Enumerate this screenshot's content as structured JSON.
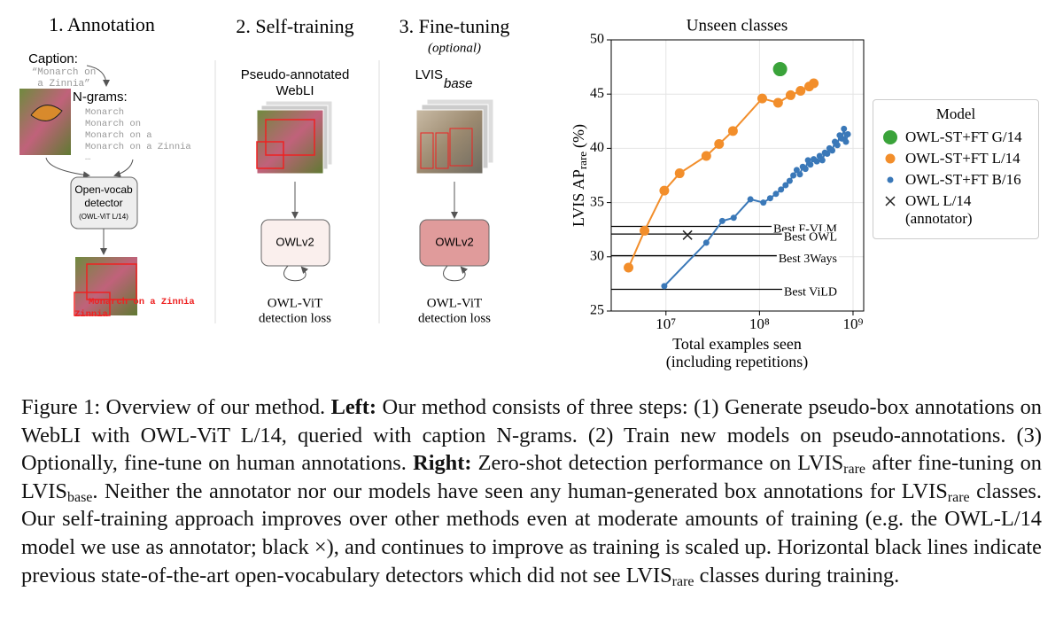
{
  "diagram": {
    "steps": [
      {
        "title": "1. Annotation"
      },
      {
        "title": "2. Self-training",
        "input": [
          "Pseudo-annotated",
          "WebLI"
        ],
        "model": "OWLv2",
        "loss": [
          "OWL-ViT",
          "detection loss"
        ]
      },
      {
        "title": "3. Fine-tuning",
        "note": "(optional)",
        "input": "LVIS",
        "input_sub": "base",
        "model": "OWLv2",
        "loss": [
          "OWL-ViT",
          "detection loss"
        ]
      }
    ],
    "caption_label": "Caption:",
    "caption_text": [
      "“Monarch on",
      "a Zinnia”"
    ],
    "ngrams_label": "N-grams:",
    "ngrams": [
      "Monarch",
      "Monarch on",
      "Monarch on a",
      "Monarch on a Zinnia",
      "…"
    ],
    "detector": [
      "Open-vocab",
      "detector",
      "(OWL-ViT L/14)"
    ],
    "box_labels": [
      "Monarch on a Zinnia",
      "Zinnia"
    ]
  },
  "chart_data": {
    "type": "scatter",
    "title": "Unseen classes",
    "ylabel": {
      "text": "LVIS AP",
      "sub": "rare",
      "unit": "(%)"
    },
    "xlabel": [
      "Total examples seen",
      "(including repetitions)"
    ],
    "xscale": "log",
    "xlim": [
      2600000,
      1300000000
    ],
    "xticks": [
      {
        "value": 10000000,
        "label": "10⁷"
      },
      {
        "value": 100000000,
        "label": "10⁸"
      },
      {
        "value": 1000000000,
        "label": "10⁹"
      }
    ],
    "ylim": [
      25,
      50
    ],
    "yticks": [
      25,
      30,
      35,
      40,
      45,
      50
    ],
    "grid": true,
    "legend": {
      "title": "Model",
      "loc": "right"
    },
    "series": [
      {
        "name": "OWL-ST+FT G/14",
        "color": "#3aa33a",
        "marker": "circle",
        "size": 8,
        "line": false,
        "x": [
          166000000
        ],
        "values": [
          47.3
        ]
      },
      {
        "name": "OWL-ST+FT L/14",
        "color": "#f28e2b",
        "marker": "circle",
        "size": 5.5,
        "line": true,
        "x": [
          3980000,
          5900000,
          9600000,
          14000000,
          27000000,
          37000000,
          52000000,
          107000000,
          158000000,
          215000000,
          275000000,
          340000000,
          380000000
        ],
        "values": [
          29.0,
          32.4,
          36.1,
          37.7,
          39.3,
          40.4,
          41.6,
          44.6,
          44.2,
          44.9,
          45.3,
          45.7,
          46.0
        ]
      },
      {
        "name": "OWL-ST+FT B/16",
        "color": "#3a78b8",
        "marker": "circle",
        "size": 3.5,
        "line": true,
        "x": [
          9600000,
          27000000,
          40000000,
          53000000,
          80000000,
          110000000,
          130000000,
          150000000,
          170000000,
          190000000,
          210000000,
          230000000,
          250000000,
          270000000,
          290000000,
          310000000,
          330000000,
          350000000,
          380000000,
          410000000,
          440000000,
          470000000,
          500000000,
          530000000,
          560000000,
          600000000,
          640000000,
          680000000,
          720000000,
          760000000,
          800000000,
          840000000,
          880000000
        ],
        "values": [
          27.3,
          31.3,
          33.3,
          33.6,
          35.3,
          35.0,
          35.4,
          35.8,
          36.2,
          36.6,
          37.0,
          37.5,
          38.0,
          37.6,
          38.3,
          38.1,
          38.9,
          38.5,
          39.0,
          38.8,
          39.3,
          38.9,
          39.6,
          39.5,
          40.0,
          39.8,
          40.6,
          40.3,
          41.2,
          40.9,
          41.8,
          40.6,
          41.3
        ]
      },
      {
        "name": "OWL L/14 (annotator)",
        "color": "#222222",
        "marker": "cross",
        "size": 5,
        "line": false,
        "x": [
          17000000
        ],
        "values": [
          32.0
        ]
      }
    ],
    "reference_lines": [
      {
        "label": "Best F-VLM",
        "value": 32.8
      },
      {
        "label": "Best OWL",
        "value": 32.1
      },
      {
        "label": "Best 3Ways",
        "value": 30.1
      },
      {
        "label": "Best ViLD",
        "value": 27.0
      }
    ]
  },
  "caption": {
    "runs": [
      {
        "text": "Figure 1: Overview of our method. "
      },
      {
        "text": "Left:",
        "bold": true
      },
      {
        "text": " Our method consists of three steps: (1) Generate pseudo-box annotations on WebLI with OWL-ViT L/14, queried with caption N-grams. (2) Train new models on pseudo-annotations. (3) Optionally, fine-tune on human annotations. "
      },
      {
        "text": "Right:",
        "bold": true
      },
      {
        "text": " Zero-shot detection performance on LVIS"
      },
      {
        "text": "rare",
        "sub": true
      },
      {
        "text": " after fine-tuning on LVIS"
      },
      {
        "text": "base",
        "sub": true
      },
      {
        "text": ". Neither the annotator nor our models have seen any human-generated box annotations for LVIS"
      },
      {
        "text": "rare",
        "sub": true
      },
      {
        "text": " classes. Our self-training approach improves over other methods even at moderate amounts of training (e.g. the OWL-L/14 model we use as annotator; black ×), and continues to improve as training is scaled up. Horizontal black lines indicate previous state-of-the-art open-vocabulary detectors which did not see LVIS"
      },
      {
        "text": "rare",
        "sub": true
      },
      {
        "text": " classes during training."
      }
    ]
  }
}
